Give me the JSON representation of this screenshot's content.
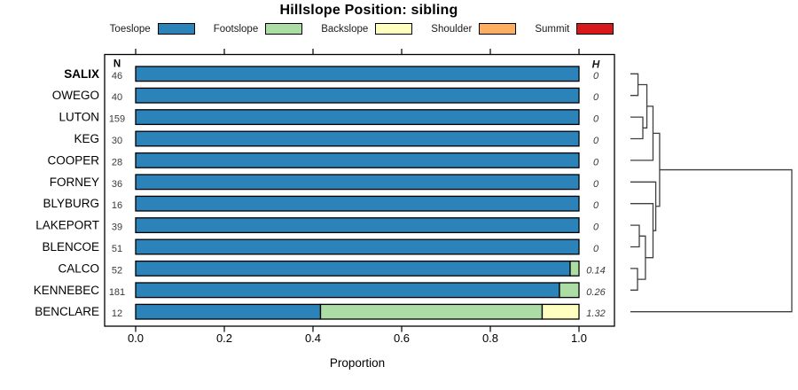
{
  "title": "Hillslope Position: sibling",
  "legend": [
    {
      "label": "Toeslope",
      "color": "#2B83BA"
    },
    {
      "label": "Footslope",
      "color": "#ABDDA4"
    },
    {
      "label": "Backslope",
      "color": "#FFFFBF"
    },
    {
      "label": "Shoulder",
      "color": "#FDAE61"
    },
    {
      "label": "Summit",
      "color": "#D7191C"
    }
  ],
  "chart_data": {
    "type": "bar",
    "stacked": true,
    "orientation": "horizontal",
    "xlabel": "Proportion",
    "xlim": [
      0,
      1
    ],
    "x_ticks": [
      "0.0",
      "0.2",
      "0.4",
      "0.6",
      "0.8",
      "1.0"
    ],
    "grid": false,
    "columns": {
      "n_header": "N",
      "h_header": "H"
    },
    "categories": [
      "Toeslope",
      "Footslope",
      "Backslope",
      "Shoulder",
      "Summit"
    ],
    "rows": [
      {
        "name": "SALIX",
        "n": "46",
        "h": "0",
        "values": [
          1,
          0,
          0,
          0,
          0
        ],
        "emphasis": true
      },
      {
        "name": "OWEGO",
        "n": "40",
        "h": "0",
        "values": [
          1,
          0,
          0,
          0,
          0
        ]
      },
      {
        "name": "LUTON",
        "n": "159",
        "h": "0",
        "values": [
          1,
          0,
          0,
          0,
          0
        ]
      },
      {
        "name": "KEG",
        "n": "30",
        "h": "0",
        "values": [
          1,
          0,
          0,
          0,
          0
        ]
      },
      {
        "name": "COOPER",
        "n": "28",
        "h": "0",
        "values": [
          1,
          0,
          0,
          0,
          0
        ]
      },
      {
        "name": "FORNEY",
        "n": "36",
        "h": "0",
        "values": [
          1,
          0,
          0,
          0,
          0
        ]
      },
      {
        "name": "BLYBURG",
        "n": "16",
        "h": "0",
        "values": [
          1,
          0,
          0,
          0,
          0
        ]
      },
      {
        "name": "LAKEPORT",
        "n": "39",
        "h": "0",
        "values": [
          1,
          0,
          0,
          0,
          0
        ]
      },
      {
        "name": "BLENCOE",
        "n": "51",
        "h": "0",
        "values": [
          1,
          0,
          0,
          0,
          0
        ]
      },
      {
        "name": "CALCO",
        "n": "52",
        "h": "0.14",
        "values": [
          0.98,
          0.02,
          0,
          0,
          0
        ]
      },
      {
        "name": "KENNEBEC",
        "n": "181",
        "h": "0.26",
        "values": [
          0.956,
          0.044,
          0,
          0,
          0
        ]
      },
      {
        "name": "BENCLARE",
        "n": "12",
        "h": "1.32",
        "values": [
          0.417,
          0.5,
          0.083,
          0,
          0
        ]
      }
    ],
    "dendrogram": {
      "note": "heights normalized 0-1 from leaves to root",
      "merges": [
        {
          "a": "L0",
          "b": "L1",
          "h": 0.047
        },
        {
          "a": "L2",
          "b": "L3",
          "h": 0.077
        },
        {
          "a": "M0",
          "b": "M1",
          "h": 0.102
        },
        {
          "a": "M2",
          "b": "L4",
          "h": 0.14
        },
        {
          "a": "L7",
          "b": "L8",
          "h": 0.055
        },
        {
          "a": "L9",
          "b": "L10",
          "h": 0.044
        },
        {
          "a": "M4",
          "b": "M5",
          "h": 0.093
        },
        {
          "a": "L6",
          "b": "M6",
          "h": 0.14
        },
        {
          "a": "L5",
          "b": "M7",
          "h": 0.157
        },
        {
          "a": "M3",
          "b": "M8",
          "h": 0.181
        },
        {
          "a": "M9",
          "b": "L11",
          "h": 1.0
        }
      ]
    }
  }
}
